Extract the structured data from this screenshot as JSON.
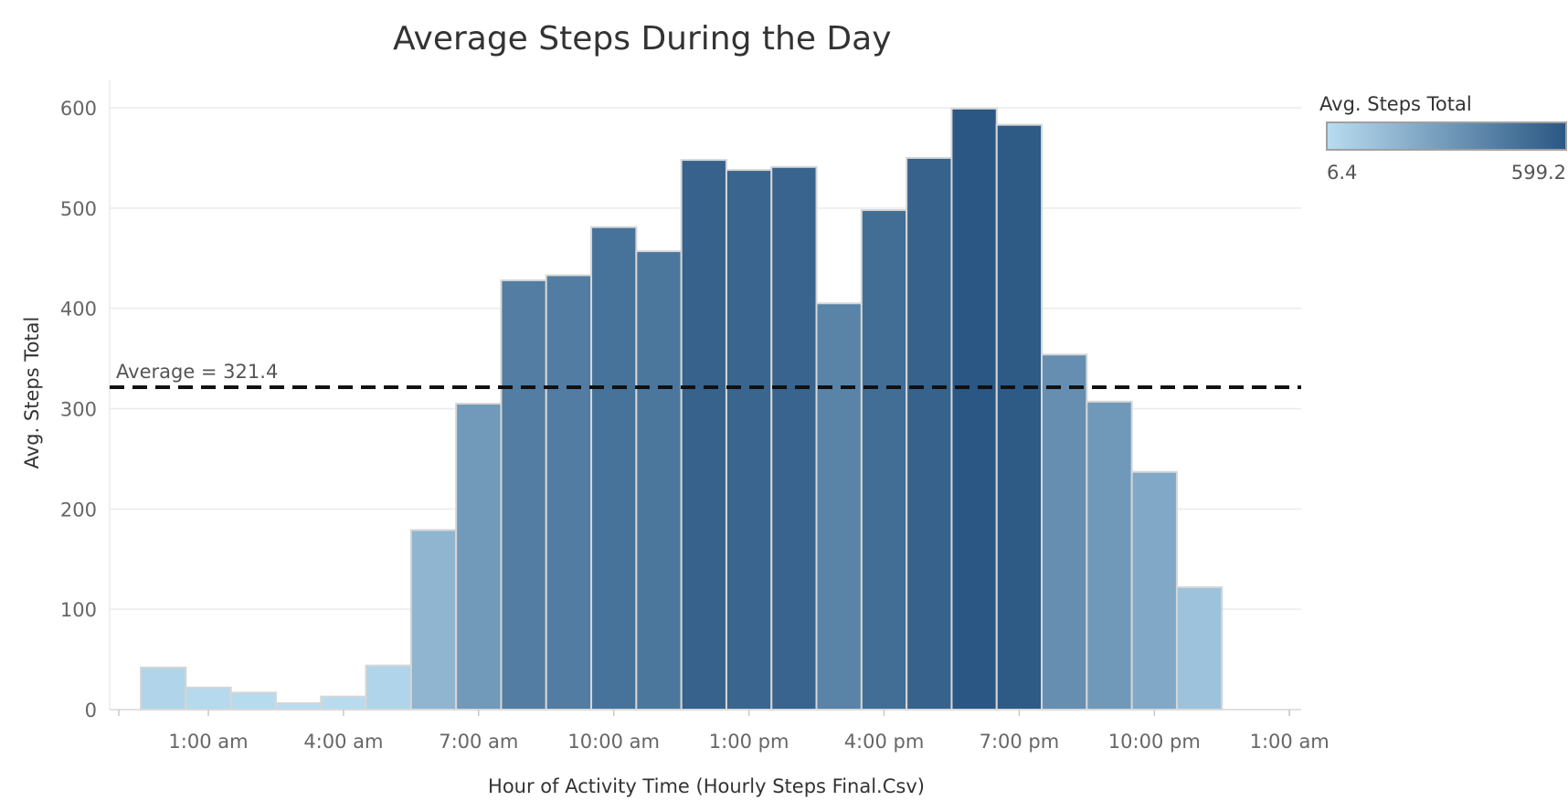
{
  "chart_data": {
    "type": "bar",
    "title": "Average Steps During the Day",
    "xlabel": "Hour of Activity Time (Hourly Steps Final.Csv)",
    "ylabel": "Avg. Steps Total",
    "ylim": [
      0,
      600
    ],
    "yticks": [
      0,
      100,
      200,
      300,
      400,
      500,
      600
    ],
    "x_tick_labels": [
      {
        "hour": 1,
        "label": "1:00 am"
      },
      {
        "hour": 4,
        "label": "4:00 am"
      },
      {
        "hour": 7,
        "label": "7:00 am"
      },
      {
        "hour": 10,
        "label": "10:00 am"
      },
      {
        "hour": 13,
        "label": "1:00 pm"
      },
      {
        "hour": 16,
        "label": "4:00 pm"
      },
      {
        "hour": 19,
        "label": "7:00 pm"
      },
      {
        "hour": 22,
        "label": "10:00 pm"
      },
      {
        "hour": 25,
        "label": "1:00 am"
      }
    ],
    "hours": [
      0,
      1,
      2,
      3,
      4,
      5,
      6,
      7,
      8,
      9,
      10,
      11,
      12,
      13,
      14,
      15,
      16,
      17,
      18,
      19,
      20,
      21,
      22,
      23
    ],
    "values": [
      42,
      22,
      17,
      6.4,
      13,
      44,
      179,
      305,
      428,
      433,
      481,
      457,
      548,
      538,
      541,
      405,
      498,
      550,
      599.2,
      583,
      354,
      307,
      237,
      122
    ],
    "reference_line": {
      "value": 321.4,
      "label": "Average = 321.4"
    },
    "legend": {
      "title": "Avg. Steps Total",
      "min_label": "6.4",
      "max_label": "599.2",
      "min": 6.4,
      "max": 599.2,
      "color_low": "#b9dcf0",
      "color_high": "#2a5783",
      "position": "top-right"
    },
    "grid": true
  }
}
